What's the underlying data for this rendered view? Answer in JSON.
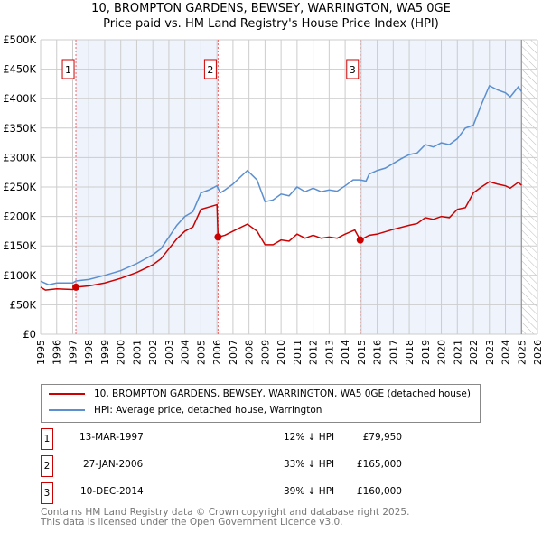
{
  "chart_data": {
    "type": "line",
    "title": "10, BROMPTON GARDENS, BEWSEY, WARRINGTON, WA5 0GE",
    "subtitle": "Price paid vs. HM Land Registry's House Price Index (HPI)",
    "xlim": [
      1995,
      2026
    ],
    "ylim": [
      0,
      500000
    ],
    "x_ticks": [
      "1995",
      "1996",
      "1997",
      "1998",
      "1999",
      "2000",
      "2001",
      "2002",
      "2003",
      "2004",
      "2005",
      "2006",
      "2007",
      "2008",
      "2009",
      "2010",
      "2011",
      "2012",
      "2013",
      "2014",
      "2015",
      "2016",
      "2017",
      "2018",
      "2019",
      "2020",
      "2021",
      "2022",
      "2023",
      "2024",
      "2025",
      "2026"
    ],
    "y_ticks": [
      "£0",
      "£50K",
      "£100K",
      "£150K",
      "£200K",
      "£250K",
      "£300K",
      "£350K",
      "£400K",
      "£450K",
      "£500K"
    ],
    "grid": true,
    "series": [
      {
        "name": "10, BROMPTON GARDENS, BEWSEY, WARRINGTON, WA5 0GE (detached house)",
        "color": "#cc0000",
        "points": [
          [
            1995,
            80
          ],
          [
            1995.3,
            75
          ],
          [
            1996,
            77
          ],
          [
            1997,
            76
          ],
          [
            1997.2,
            79.95
          ],
          [
            1998,
            82
          ],
          [
            1999,
            87
          ],
          [
            2000,
            95
          ],
          [
            2001,
            105
          ],
          [
            2002,
            118
          ],
          [
            2002.5,
            128
          ],
          [
            2003,
            145
          ],
          [
            2003.5,
            162
          ],
          [
            2004,
            175
          ],
          [
            2004.5,
            182
          ],
          [
            2005,
            212
          ],
          [
            2005.5,
            216
          ],
          [
            2006,
            220
          ],
          [
            2006.07,
            165
          ],
          [
            2006.5,
            168
          ],
          [
            2007,
            175
          ],
          [
            2007.9,
            187
          ],
          [
            2008.5,
            175
          ],
          [
            2009,
            152
          ],
          [
            2009.5,
            152
          ],
          [
            2010,
            160
          ],
          [
            2010.5,
            158
          ],
          [
            2011,
            170
          ],
          [
            2011.5,
            163
          ],
          [
            2012,
            168
          ],
          [
            2012.5,
            163
          ],
          [
            2013,
            165
          ],
          [
            2013.5,
            163
          ],
          [
            2014,
            170
          ],
          [
            2014.6,
            177
          ],
          [
            2014.94,
            160
          ],
          [
            2015.5,
            168
          ],
          [
            2016,
            170
          ],
          [
            2017,
            178
          ],
          [
            2018,
            185
          ],
          [
            2018.5,
            188
          ],
          [
            2019,
            198
          ],
          [
            2019.5,
            195
          ],
          [
            2020,
            200
          ],
          [
            2020.5,
            198
          ],
          [
            2021,
            212
          ],
          [
            2021.5,
            215
          ],
          [
            2022,
            240
          ],
          [
            2022.5,
            250
          ],
          [
            2023,
            259
          ],
          [
            2023.5,
            255
          ],
          [
            2024,
            252
          ],
          [
            2024.3,
            248
          ],
          [
            2024.8,
            258
          ],
          [
            2025,
            253
          ]
        ]
      },
      {
        "name": "HPI: Average price, detached house, Warrington",
        "color": "#5b8fd0",
        "points": [
          [
            1995,
            90
          ],
          [
            1995.5,
            84
          ],
          [
            1996,
            87
          ],
          [
            1997,
            87
          ],
          [
            1997.2,
            90.5
          ],
          [
            1998,
            93
          ],
          [
            1999,
            100
          ],
          [
            2000,
            108
          ],
          [
            2001,
            120
          ],
          [
            2002,
            135
          ],
          [
            2002.5,
            145
          ],
          [
            2003,
            165
          ],
          [
            2003.5,
            185
          ],
          [
            2004,
            200
          ],
          [
            2004.5,
            208
          ],
          [
            2005,
            240
          ],
          [
            2005.5,
            245
          ],
          [
            2006,
            252
          ],
          [
            2006.2,
            240
          ],
          [
            2006.5,
            245
          ],
          [
            2007,
            255
          ],
          [
            2007.5,
            268
          ],
          [
            2007.9,
            278
          ],
          [
            2008.5,
            262
          ],
          [
            2009,
            225
          ],
          [
            2009.5,
            228
          ],
          [
            2010,
            238
          ],
          [
            2010.5,
            235
          ],
          [
            2011,
            250
          ],
          [
            2011.5,
            242
          ],
          [
            2012,
            248
          ],
          [
            2012.5,
            242
          ],
          [
            2013,
            245
          ],
          [
            2013.5,
            243
          ],
          [
            2014,
            252
          ],
          [
            2014.5,
            262
          ],
          [
            2014.94,
            262
          ],
          [
            2015.3,
            260
          ],
          [
            2015.5,
            272
          ],
          [
            2016,
            278
          ],
          [
            2016.5,
            282
          ],
          [
            2017,
            290
          ],
          [
            2017.5,
            298
          ],
          [
            2018,
            305
          ],
          [
            2018.5,
            308
          ],
          [
            2019,
            322
          ],
          [
            2019.5,
            318
          ],
          [
            2020,
            325
          ],
          [
            2020.5,
            322
          ],
          [
            2021,
            332
          ],
          [
            2021.5,
            350
          ],
          [
            2022,
            355
          ],
          [
            2022.5,
            390
          ],
          [
            2023,
            422
          ],
          [
            2023.5,
            415
          ],
          [
            2024,
            410
          ],
          [
            2024.3,
            403
          ],
          [
            2024.8,
            420
          ],
          [
            2025,
            412
          ]
        ]
      }
    ],
    "y_units": "thousands GBP",
    "shaded_ranges": [
      [
        1997.2,
        2006.07
      ],
      [
        2014.94,
        2025
      ]
    ],
    "forecast_hatch_from": 2025,
    "sales": [
      {
        "label": "1",
        "x": 1997.2,
        "value": 79.95,
        "date": "13-MAR-1997",
        "price": "£79,950",
        "delta": "12% ↓ HPI"
      },
      {
        "label": "2",
        "x": 2006.07,
        "value": 165,
        "date": "27-JAN-2006",
        "price": "£165,000",
        "delta": "33% ↓ HPI"
      },
      {
        "label": "3",
        "x": 2014.94,
        "value": 160,
        "date": "10-DEC-2014",
        "price": "£160,000",
        "delta": "39% ↓ HPI"
      }
    ]
  },
  "footer": [
    "Contains HM Land Registry data © Crown copyright and database right 2025.",
    "This data is licensed under the Open Government Licence v3.0."
  ]
}
